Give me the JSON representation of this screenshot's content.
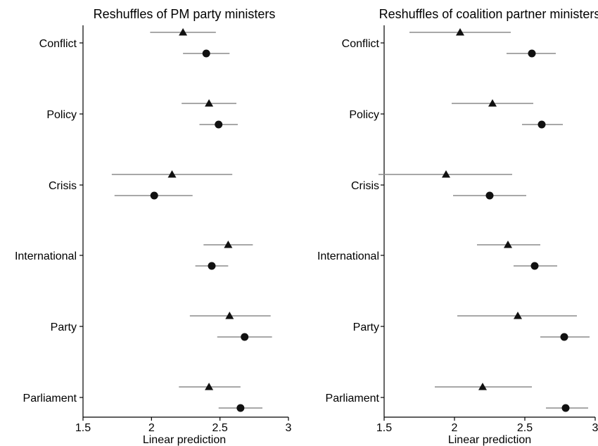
{
  "chart_data": [
    {
      "type": "scatter",
      "title": "Reshuffles of PM party ministers",
      "xlabel": "Linear prediction",
      "ylabel": "",
      "xlim": [
        1.5,
        3
      ],
      "xticks": [
        "1.5",
        "2",
        "2.5",
        "3"
      ],
      "categories": [
        "Conflict",
        "Policy",
        "Crisis",
        "International",
        "Party",
        "Parliament"
      ],
      "series": [
        {
          "marker": "triangle",
          "points": [
            {
              "category": "Conflict",
              "estimate": 2.23,
              "lower": 1.99,
              "upper": 2.47
            },
            {
              "category": "Policy",
              "estimate": 2.42,
              "lower": 2.22,
              "upper": 2.62
            },
            {
              "category": "Crisis",
              "estimate": 2.15,
              "lower": 1.71,
              "upper": 2.59
            },
            {
              "category": "International",
              "estimate": 2.56,
              "lower": 2.38,
              "upper": 2.74
            },
            {
              "category": "Party",
              "estimate": 2.57,
              "lower": 2.28,
              "upper": 2.87
            },
            {
              "category": "Parliament",
              "estimate": 2.42,
              "lower": 2.2,
              "upper": 2.65
            }
          ]
        },
        {
          "marker": "circle",
          "points": [
            {
              "category": "Conflict",
              "estimate": 2.4,
              "lower": 2.23,
              "upper": 2.57
            },
            {
              "category": "Policy",
              "estimate": 2.49,
              "lower": 2.35,
              "upper": 2.63
            },
            {
              "category": "Crisis",
              "estimate": 2.02,
              "lower": 1.73,
              "upper": 2.3
            },
            {
              "category": "International",
              "estimate": 2.44,
              "lower": 2.32,
              "upper": 2.56
            },
            {
              "category": "Party",
              "estimate": 2.68,
              "lower": 2.48,
              "upper": 2.88
            },
            {
              "category": "Parliament",
              "estimate": 2.65,
              "lower": 2.49,
              "upper": 2.81
            }
          ]
        }
      ]
    },
    {
      "type": "scatter",
      "title": "Reshuffles of coalition partner ministers",
      "xlabel": "Linear prediction",
      "ylabel": "",
      "xlim": [
        1.5,
        3
      ],
      "xticks": [
        "1.5",
        "2",
        "2.5",
        "3"
      ],
      "categories": [
        "Conflict",
        "Policy",
        "Crisis",
        "International",
        "Party",
        "Parliament"
      ],
      "series": [
        {
          "marker": "triangle",
          "points": [
            {
              "category": "Conflict",
              "estimate": 2.04,
              "lower": 1.68,
              "upper": 2.4
            },
            {
              "category": "Policy",
              "estimate": 2.27,
              "lower": 1.98,
              "upper": 2.56
            },
            {
              "category": "Crisis",
              "estimate": 1.94,
              "lower": 1.46,
              "upper": 2.41
            },
            {
              "category": "International",
              "estimate": 2.38,
              "lower": 2.16,
              "upper": 2.61
            },
            {
              "category": "Party",
              "estimate": 2.45,
              "lower": 2.02,
              "upper": 2.87
            },
            {
              "category": "Parliament",
              "estimate": 2.2,
              "lower": 1.86,
              "upper": 2.55
            }
          ]
        },
        {
          "marker": "circle",
          "points": [
            {
              "category": "Conflict",
              "estimate": 2.55,
              "lower": 2.37,
              "upper": 2.72
            },
            {
              "category": "Policy",
              "estimate": 2.62,
              "lower": 2.48,
              "upper": 2.77
            },
            {
              "category": "Crisis",
              "estimate": 2.25,
              "lower": 1.99,
              "upper": 2.51
            },
            {
              "category": "International",
              "estimate": 2.57,
              "lower": 2.42,
              "upper": 2.73
            },
            {
              "category": "Party",
              "estimate": 2.78,
              "lower": 2.61,
              "upper": 2.96
            },
            {
              "category": "Parliament",
              "estimate": 2.79,
              "lower": 2.65,
              "upper": 2.95
            }
          ]
        }
      ]
    }
  ]
}
